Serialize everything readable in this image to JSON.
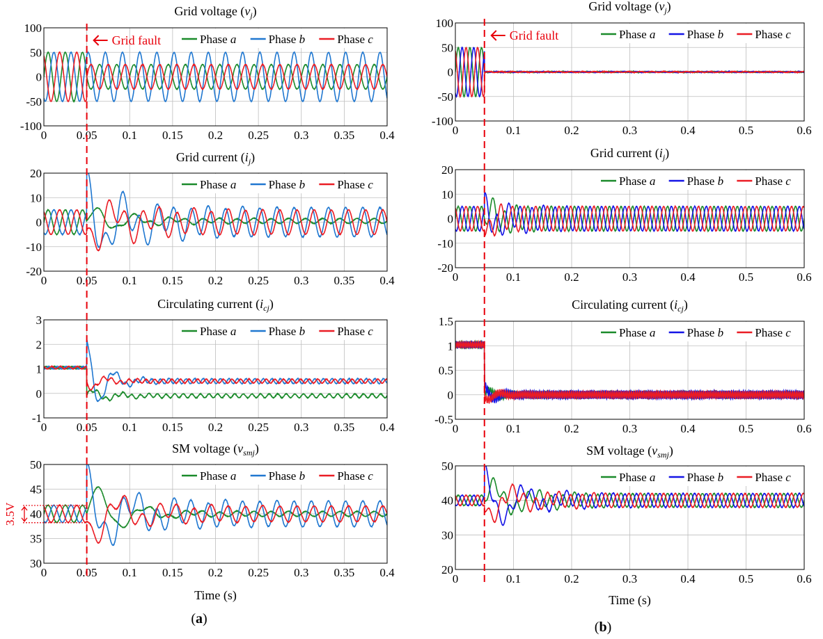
{
  "figure": {
    "xlabel": "Time (s)",
    "fault_label": "Grid fault",
    "fault_time": 0.05,
    "colors": {
      "a": "#1a8a2a",
      "b": "#1f77d0",
      "c": "#ea1c24",
      "b_right": "#1414e6",
      "fault": "#e8000b"
    },
    "panel_labels": [
      "(a)",
      "(b)"
    ]
  },
  "chart_data": [
    {
      "id": "a1",
      "type": "line",
      "title": "Grid voltage (vj)",
      "title_main": "Grid voltage (",
      "title_sym": "v",
      "title_sub": "j",
      "title_end": ")",
      "xlim": [
        0,
        0.4
      ],
      "ylim": [
        -100,
        100
      ],
      "xticks": [
        0,
        0.05,
        0.1,
        0.15,
        0.2,
        0.25,
        0.3,
        0.35,
        0.4
      ],
      "yticks": [
        -100,
        -50,
        0,
        50,
        100
      ],
      "legend": [
        "Phase a",
        "Phase b",
        "Phase c"
      ],
      "legend_placement": "top-right",
      "grid": true,
      "fault_annotation": "Grid fault",
      "series": [
        {
          "name": "Phase a",
          "before": {
            "amplitude": 50,
            "offset": 0,
            "phase_deg": 0
          },
          "after": {
            "amplitude": 25,
            "offset": 0,
            "phase_deg": 0
          }
        },
        {
          "name": "Phase b",
          "before": {
            "amplitude": 50,
            "offset": 0,
            "phase_deg": -120
          },
          "after": {
            "amplitude": 50,
            "offset": 0,
            "phase_deg": -120
          }
        },
        {
          "name": "Phase c",
          "before": {
            "amplitude": 50,
            "offset": 0,
            "phase_deg": 120
          },
          "after": {
            "amplitude": 25,
            "offset": 0,
            "phase_deg": 180
          }
        }
      ],
      "frequency_hz": 50
    },
    {
      "id": "a2",
      "type": "line",
      "title": "Grid current (ij)",
      "title_main": "Grid current (",
      "title_sym": "i",
      "title_sub": "j",
      "title_end": ")",
      "xlim": [
        0,
        0.4
      ],
      "ylim": [
        -20,
        20
      ],
      "xticks": [
        0,
        0.05,
        0.1,
        0.15,
        0.2,
        0.25,
        0.3,
        0.35,
        0.4
      ],
      "yticks": [
        -20,
        -10,
        0,
        10,
        20
      ],
      "legend": [
        "Phase a",
        "Phase b",
        "Phase c"
      ],
      "legend_placement": "top-right",
      "grid": true,
      "series": [
        {
          "name": "Phase a",
          "before": {
            "amplitude": 5,
            "offset": 0,
            "phase_deg": 0
          },
          "after": {
            "amplitude": 1,
            "offset": 0.5,
            "phase_deg": 0
          },
          "transient": {
            "amplitude": 6,
            "decay": 0.05,
            "freq_hz": 22
          }
        },
        {
          "name": "Phase b",
          "before": {
            "amplitude": 5,
            "offset": 0,
            "phase_deg": -120
          },
          "after": {
            "amplitude": 6,
            "offset": 0,
            "phase_deg": -120
          },
          "transient": {
            "amplitude": 16,
            "decay": 0.05,
            "freq_hz": 22
          }
        },
        {
          "name": "Phase c",
          "before": {
            "amplitude": 5,
            "offset": 0,
            "phase_deg": 120
          },
          "after": {
            "amplitude": 5,
            "offset": 0,
            "phase_deg": 180
          },
          "transient": {
            "amplitude": 11,
            "decay": 0.05,
            "freq_hz": 22
          }
        }
      ],
      "frequency_hz": 50
    },
    {
      "id": "a3",
      "type": "line",
      "title": "Circulating current (icj)",
      "title_main": "Circulating current (",
      "title_sym": "i",
      "title_sub": "cj",
      "title_end": ")",
      "xlim": [
        0,
        0.4
      ],
      "ylim": [
        -1,
        3
      ],
      "xticks": [
        0,
        0.05,
        0.1,
        0.15,
        0.2,
        0.25,
        0.3,
        0.35,
        0.4
      ],
      "yticks": [
        -1,
        0,
        1,
        2,
        3
      ],
      "legend": [
        "Phase a",
        "Phase b",
        "Phase c"
      ],
      "legend_placement": "top-right",
      "grid": true,
      "series": [
        {
          "name": "Phase a",
          "before": {
            "amplitude": 0.05,
            "offset": 1.05,
            "phase_deg": 0
          },
          "after": {
            "amplitude": 0.08,
            "offset": -0.1,
            "phase_deg": 0
          },
          "transient": {
            "amplitude": 0.3,
            "decay": 0.03,
            "freq_hz": 30
          }
        },
        {
          "name": "Phase b",
          "before": {
            "amplitude": 0.05,
            "offset": 1.05,
            "phase_deg": -120
          },
          "after": {
            "amplitude": 0.1,
            "offset": 0.5,
            "phase_deg": -120
          },
          "transient": {
            "amplitude": 1.8,
            "decay": 0.02,
            "freq_hz": 30
          }
        },
        {
          "name": "Phase c",
          "before": {
            "amplitude": 0.05,
            "offset": 1.05,
            "phase_deg": 120
          },
          "after": {
            "amplitude": 0.08,
            "offset": 0.5,
            "phase_deg": 120
          },
          "transient": {
            "amplitude": 0.4,
            "decay": 0.02,
            "freq_hz": 30
          }
        }
      ],
      "frequency_hz": 100
    },
    {
      "id": "a4",
      "type": "line",
      "title": "SM voltage (vsmj)",
      "title_main": "SM voltage (",
      "title_sym": "v",
      "title_sub": "smj",
      "title_end": ")",
      "xlim": [
        0,
        0.4
      ],
      "ylim": [
        30,
        50
      ],
      "xticks": [
        0,
        0.05,
        0.1,
        0.15,
        0.2,
        0.25,
        0.3,
        0.35,
        0.4
      ],
      "yticks": [
        30,
        35,
        40,
        45,
        50
      ],
      "legend": [
        "Phase a",
        "Phase b",
        "Phase c"
      ],
      "legend_placement": "top-right",
      "grid": true,
      "ripple_annotation": "3.5V",
      "ripple_band": [
        38.2,
        41.7
      ],
      "series": [
        {
          "name": "Phase a",
          "before": {
            "amplitude": 1.75,
            "offset": 40,
            "phase_deg": 0
          },
          "after": {
            "amplitude": 0.5,
            "offset": 40,
            "phase_deg": 0
          },
          "transient": {
            "amplitude": 7,
            "decay": 0.04,
            "freq_hz": 18
          }
        },
        {
          "name": "Phase b",
          "before": {
            "amplitude": 1.75,
            "offset": 40,
            "phase_deg": -120
          },
          "after": {
            "amplitude": 2.6,
            "offset": 40,
            "phase_deg": -120
          },
          "transient": {
            "amplitude": 8,
            "decay": 0.05,
            "freq_hz": 18
          }
        },
        {
          "name": "Phase c",
          "before": {
            "amplitude": 1.75,
            "offset": 40,
            "phase_deg": 120
          },
          "after": {
            "amplitude": 1.6,
            "offset": 40,
            "phase_deg": 180
          },
          "transient": {
            "amplitude": 6,
            "decay": 0.05,
            "freq_hz": 18
          }
        }
      ],
      "frequency_hz": 50
    },
    {
      "id": "b1",
      "type": "line",
      "title": "Grid voltage (vj)",
      "title_main": "Grid voltage (",
      "title_sym": "v",
      "title_sub": "j",
      "title_end": ")",
      "xlim": [
        0,
        0.6
      ],
      "ylim": [
        -100,
        100
      ],
      "xticks": [
        0,
        0.1,
        0.2,
        0.3,
        0.4,
        0.5,
        0.6
      ],
      "yticks": [
        -100,
        -50,
        0,
        50,
        100
      ],
      "legend": [
        "Phase a",
        "Phase b",
        "Phase c"
      ],
      "legend_placement": "top-right",
      "grid": true,
      "fault_annotation": "Grid fault",
      "series": [
        {
          "name": "Phase a",
          "before": {
            "amplitude": 50,
            "offset": 0,
            "phase_deg": 0
          },
          "after": {
            "amplitude": 0.8,
            "offset": 0,
            "phase_deg": 0
          }
        },
        {
          "name": "Phase b",
          "before": {
            "amplitude": 50,
            "offset": 0,
            "phase_deg": -120
          },
          "after": {
            "amplitude": 0.8,
            "offset": 0,
            "phase_deg": -120
          }
        },
        {
          "name": "Phase c",
          "before": {
            "amplitude": 50,
            "offset": 0,
            "phase_deg": 120
          },
          "after": {
            "amplitude": 0.8,
            "offset": 0,
            "phase_deg": 120
          }
        }
      ],
      "frequency_hz": 50
    },
    {
      "id": "b2",
      "type": "line",
      "title": "Grid current (ij)",
      "title_main": "Grid current (",
      "title_sym": "i",
      "title_sub": "j",
      "title_end": ")",
      "xlim": [
        0,
        0.6
      ],
      "ylim": [
        -20,
        20
      ],
      "xticks": [
        0,
        0.1,
        0.2,
        0.3,
        0.4,
        0.5,
        0.6
      ],
      "yticks": [
        -20,
        -10,
        0,
        10,
        20
      ],
      "legend": [
        "Phase a",
        "Phase b",
        "Phase c"
      ],
      "legend_placement": "top-right",
      "grid": true,
      "series": [
        {
          "name": "Phase a",
          "before": {
            "amplitude": 5,
            "offset": 0,
            "phase_deg": 0
          },
          "after": {
            "amplitude": 5,
            "offset": 0,
            "phase_deg": 0
          },
          "transient": {
            "amplitude": 6,
            "decay": 0.03,
            "freq_hz": 20
          }
        },
        {
          "name": "Phase b",
          "before": {
            "amplitude": 5,
            "offset": 0,
            "phase_deg": -120
          },
          "after": {
            "amplitude": 5,
            "offset": 0,
            "phase_deg": -120
          },
          "transient": {
            "amplitude": 6,
            "decay": 0.04,
            "freq_hz": 20
          }
        },
        {
          "name": "Phase c",
          "before": {
            "amplitude": 5,
            "offset": 0,
            "phase_deg": 120
          },
          "after": {
            "amplitude": 5,
            "offset": 0,
            "phase_deg": 120
          },
          "transient": {
            "amplitude": 10,
            "decay": 0.015,
            "freq_hz": 20
          }
        }
      ],
      "frequency_hz": 50
    },
    {
      "id": "b3",
      "type": "line",
      "title": "Circulating current (icj)",
      "title_main": "Circulating current (",
      "title_sym": "i",
      "title_sub": "cj",
      "title_end": ")",
      "xlim": [
        0,
        0.6
      ],
      "ylim": [
        -0.5,
        1.5
      ],
      "xticks": [
        0,
        0.1,
        0.2,
        0.3,
        0.4,
        0.5,
        0.6
      ],
      "yticks": [
        -0.5,
        0,
        0.5,
        1,
        1.5
      ],
      "legend": [
        "Phase a",
        "Phase b",
        "Phase c"
      ],
      "legend_placement": "top-right",
      "grid": true,
      "series": [
        {
          "name": "Phase a",
          "before": {
            "amplitude": 0.06,
            "offset": 1.02,
            "phase_deg": 0
          },
          "after": {
            "amplitude": 0.06,
            "offset": 0,
            "phase_deg": 0
          },
          "transient": {
            "amplitude": 0.15,
            "decay": 0.02,
            "freq_hz": 25
          }
        },
        {
          "name": "Phase b",
          "before": {
            "amplitude": 0.06,
            "offset": 1.02,
            "phase_deg": -120
          },
          "after": {
            "amplitude": 0.08,
            "offset": 0,
            "phase_deg": -120
          },
          "transient": {
            "amplitude": 0.2,
            "decay": 0.02,
            "freq_hz": 25
          }
        },
        {
          "name": "Phase c",
          "before": {
            "amplitude": 0.06,
            "offset": 1.02,
            "phase_deg": 120
          },
          "after": {
            "amplitude": 0.07,
            "offset": 0,
            "phase_deg": 120
          },
          "transient": {
            "amplitude": 0.15,
            "decay": 0.02,
            "freq_hz": 25
          }
        }
      ],
      "frequency_hz": 300
    },
    {
      "id": "b4",
      "type": "line",
      "title": "SM voltage (vsmj)",
      "title_main": "SM voltage (",
      "title_sym": "v",
      "title_sub": "smj",
      "title_end": ")",
      "xlim": [
        0,
        0.6
      ],
      "ylim": [
        20,
        50
      ],
      "xticks": [
        0,
        0.1,
        0.2,
        0.3,
        0.4,
        0.5,
        0.6
      ],
      "yticks": [
        20,
        30,
        40,
        50
      ],
      "legend": [
        "Phase a",
        "Phase b",
        "Phase c"
      ],
      "legend_placement": "top-right",
      "grid": true,
      "series": [
        {
          "name": "Phase a",
          "before": {
            "amplitude": 1.5,
            "offset": 40,
            "phase_deg": 0
          },
          "after": {
            "amplitude": 2,
            "offset": 40,
            "phase_deg": 0
          },
          "transient": {
            "amplitude": 6,
            "decay": 0.06,
            "freq_hz": 14
          }
        },
        {
          "name": "Phase b",
          "before": {
            "amplitude": 1.5,
            "offset": 40,
            "phase_deg": -120
          },
          "after": {
            "amplitude": 2,
            "offset": 40,
            "phase_deg": -120
          },
          "transient": {
            "amplitude": 9,
            "decay": 0.06,
            "freq_hz": 14
          }
        },
        {
          "name": "Phase c",
          "before": {
            "amplitude": 1.5,
            "offset": 40,
            "phase_deg": 120
          },
          "after": {
            "amplitude": 2,
            "offset": 40,
            "phase_deg": 120
          },
          "transient": {
            "amplitude": 6,
            "decay": 0.06,
            "freq_hz": 14
          }
        }
      ],
      "frequency_hz": 50
    }
  ]
}
